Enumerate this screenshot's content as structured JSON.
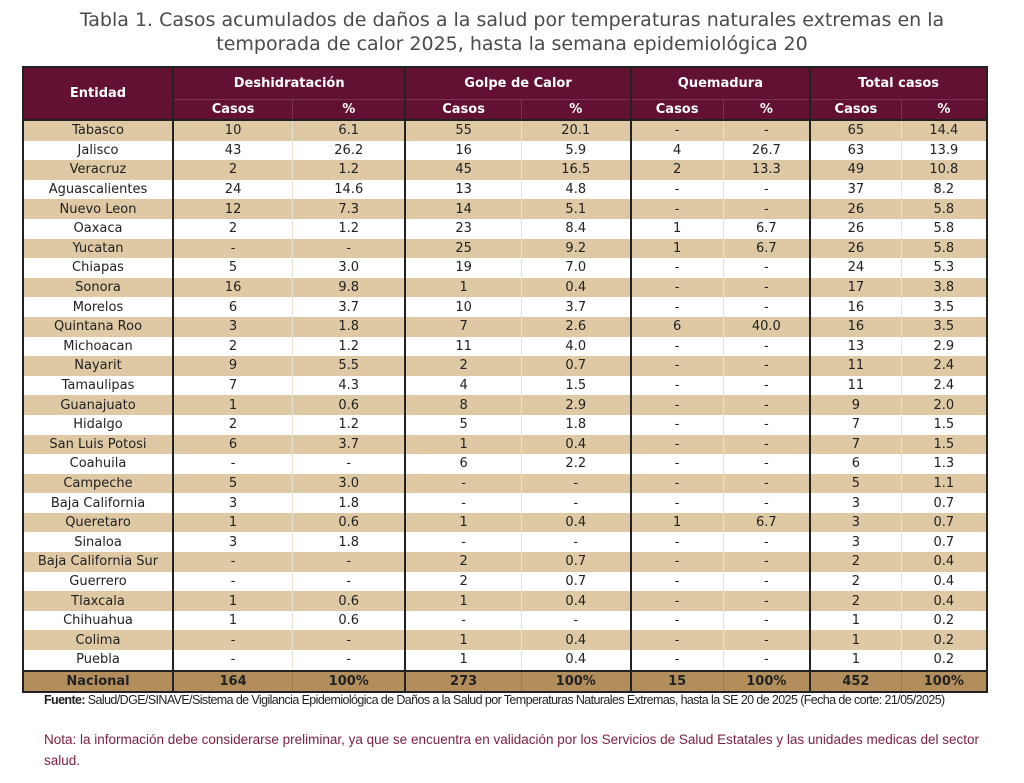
{
  "title": [
    "Tabla 1. Casos acumulados de daños a la salud por temperaturas naturales extremas en la",
    "temporada de calor 2025, hasta la semana epidemiológica 20"
  ],
  "headers": {
    "entidad": "Entidad",
    "groups": [
      "Deshidratación",
      "Golpe de Calor",
      "Quemadura",
      "Total casos"
    ],
    "sub": [
      "Casos",
      "%"
    ]
  },
  "rows": [
    [
      "Tabasco",
      "10",
      "6.1",
      "55",
      "20.1",
      "-",
      "-",
      "65",
      "14.4"
    ],
    [
      "Jalisco",
      "43",
      "26.2",
      "16",
      "5.9",
      "4",
      "26.7",
      "63",
      "13.9"
    ],
    [
      "Veracruz",
      "2",
      "1.2",
      "45",
      "16.5",
      "2",
      "13.3",
      "49",
      "10.8"
    ],
    [
      "Aguascalientes",
      "24",
      "14.6",
      "13",
      "4.8",
      "-",
      "-",
      "37",
      "8.2"
    ],
    [
      "Nuevo Leon",
      "12",
      "7.3",
      "14",
      "5.1",
      "-",
      "-",
      "26",
      "5.8"
    ],
    [
      "Oaxaca",
      "2",
      "1.2",
      "23",
      "8.4",
      "1",
      "6.7",
      "26",
      "5.8"
    ],
    [
      "Yucatan",
      "-",
      "-",
      "25",
      "9.2",
      "1",
      "6.7",
      "26",
      "5.8"
    ],
    [
      "Chiapas",
      "5",
      "3.0",
      "19",
      "7.0",
      "-",
      "-",
      "24",
      "5.3"
    ],
    [
      "Sonora",
      "16",
      "9.8",
      "1",
      "0.4",
      "-",
      "-",
      "17",
      "3.8"
    ],
    [
      "Morelos",
      "6",
      "3.7",
      "10",
      "3.7",
      "-",
      "-",
      "16",
      "3.5"
    ],
    [
      "Quintana Roo",
      "3",
      "1.8",
      "7",
      "2.6",
      "6",
      "40.0",
      "16",
      "3.5"
    ],
    [
      "Michoacan",
      "2",
      "1.2",
      "11",
      "4.0",
      "-",
      "-",
      "13",
      "2.9"
    ],
    [
      "Nayarit",
      "9",
      "5.5",
      "2",
      "0.7",
      "-",
      "-",
      "11",
      "2.4"
    ],
    [
      "Tamaulipas",
      "7",
      "4.3",
      "4",
      "1.5",
      "-",
      "-",
      "11",
      "2.4"
    ],
    [
      "Guanajuato",
      "1",
      "0.6",
      "8",
      "2.9",
      "-",
      "-",
      "9",
      "2.0"
    ],
    [
      "Hidalgo",
      "2",
      "1.2",
      "5",
      "1.8",
      "-",
      "-",
      "7",
      "1.5"
    ],
    [
      "San Luis Potosi",
      "6",
      "3.7",
      "1",
      "0.4",
      "-",
      "-",
      "7",
      "1.5"
    ],
    [
      "Coahuila",
      "-",
      "-",
      "6",
      "2.2",
      "-",
      "-",
      "6",
      "1.3"
    ],
    [
      "Campeche",
      "5",
      "3.0",
      "-",
      "-",
      "-",
      "-",
      "5",
      "1.1"
    ],
    [
      "Baja California",
      "3",
      "1.8",
      "-",
      "-",
      "-",
      "-",
      "3",
      "0.7"
    ],
    [
      "Queretaro",
      "1",
      "0.6",
      "1",
      "0.4",
      "1",
      "6.7",
      "3",
      "0.7"
    ],
    [
      "Sinaloa",
      "3",
      "1.8",
      "-",
      "-",
      "-",
      "-",
      "3",
      "0.7"
    ],
    [
      "Baja California Sur",
      "-",
      "-",
      "2",
      "0.7",
      "-",
      "-",
      "2",
      "0.4"
    ],
    [
      "Guerrero",
      "-",
      "-",
      "2",
      "0.7",
      "-",
      "-",
      "2",
      "0.4"
    ],
    [
      "Tlaxcala",
      "1",
      "0.6",
      "1",
      "0.4",
      "-",
      "-",
      "2",
      "0.4"
    ],
    [
      "Chihuahua",
      "1",
      "0.6",
      "-",
      "-",
      "-",
      "-",
      "1",
      "0.2"
    ],
    [
      "Colima",
      "-",
      "-",
      "1",
      "0.4",
      "-",
      "-",
      "1",
      "0.2"
    ],
    [
      "Puebla",
      "-",
      "-",
      "1",
      "0.4",
      "-",
      "-",
      "1",
      "0.2"
    ]
  ],
  "total": [
    "Nacional",
    "164",
    "100%",
    "273",
    "100%",
    "15",
    "100%",
    "452",
    "100%"
  ],
  "source": {
    "label": "Fuente:",
    "text": " Salud/DGE/SINAVE/Sistema de Vigilancia Epidemiológica de Daños a la Salud por Temperaturas Naturales Extremas, hasta la SE 20 de 2025 (Fecha de corte: 21/05/2025)"
  },
  "note": "Nota: la información debe considerarse preliminar, ya que se encuentra en validación por los Servicios de Salud Estatales y las unidades medicas del sector salud.",
  "colors": {
    "header": "#621132",
    "stripe": "#dec9a4",
    "total": "#b38e5d",
    "note": "#7a1f3f"
  }
}
